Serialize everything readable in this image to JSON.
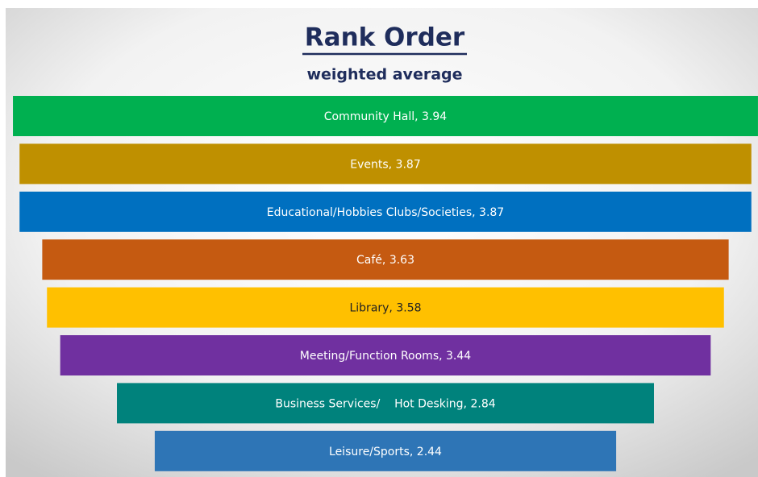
{
  "chart_data": {
    "type": "funnel",
    "title": "Rank Order",
    "subtitle": "weighted average",
    "values": [
      3.94,
      3.87,
      3.87,
      3.63,
      3.58,
      3.44,
      2.84,
      2.44
    ],
    "value_labels": [
      "Community Hall, 3.94",
      "Events, 3.87",
      "Educational/Hobbies Clubs/Societies, 3.87",
      "Café, 3.63",
      "Library, 3.58",
      "Meeting/Function Rooms, 3.44",
      "Business Services/    Hot Desking, 2.84",
      "Leisure/Sports, 2.44"
    ],
    "colors": [
      "#00b050",
      "#bf9000",
      "#0070c0",
      "#c55a11",
      "#ffc000",
      "#7030a0",
      "#00827c",
      "#2e75b6"
    ],
    "label_colors": [
      "#ffffff",
      "#ffffff",
      "#ffffff",
      "#ffffff",
      "#222222",
      "#ffffff",
      "#ffffff",
      "#ffffff"
    ]
  }
}
